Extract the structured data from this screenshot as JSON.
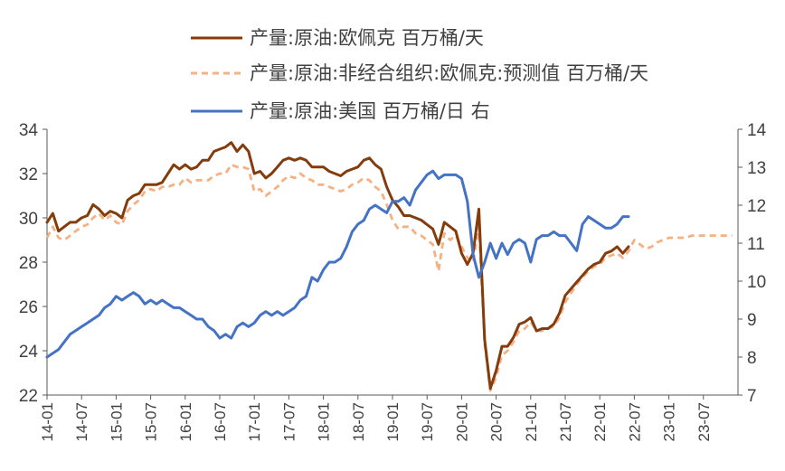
{
  "chart_data": {
    "type": "line",
    "title": "",
    "xlabel": "",
    "ylabel": "",
    "ylim": [
      22,
      34
    ],
    "y2lim": [
      7,
      14
    ],
    "y_ticks": [
      "22",
      "24",
      "26",
      "28",
      "30",
      "32",
      "34"
    ],
    "y2_ticks": [
      "7",
      "8",
      "9",
      "10",
      "11",
      "12",
      "13",
      "14"
    ],
    "x_ticks": [
      "14-01",
      "14-07",
      "15-01",
      "15-07",
      "16-01",
      "16-07",
      "17-01",
      "17-07",
      "18-01",
      "18-07",
      "19-01",
      "19-07",
      "20-01",
      "20-07",
      "21-01",
      "21-07",
      "22-01",
      "22-07",
      "23-01",
      "23-07"
    ],
    "legend_position": "top",
    "grid": false,
    "series": [
      {
        "name": "产量:原油:欧佩克 百万桶/天",
        "axis": "left",
        "color": "#843C0C",
        "style": "solid",
        "x": [
          "2014-01",
          "2014-02",
          "2014-03",
          "2014-04",
          "2014-05",
          "2014-06",
          "2014-07",
          "2014-08",
          "2014-09",
          "2014-10",
          "2014-11",
          "2014-12",
          "2015-01",
          "2015-02",
          "2015-03",
          "2015-04",
          "2015-05",
          "2015-06",
          "2015-07",
          "2015-08",
          "2015-09",
          "2015-10",
          "2015-11",
          "2015-12",
          "2016-01",
          "2016-02",
          "2016-03",
          "2016-04",
          "2016-05",
          "2016-06",
          "2016-07",
          "2016-08",
          "2016-09",
          "2016-10",
          "2016-11",
          "2016-12",
          "2017-01",
          "2017-02",
          "2017-03",
          "2017-04",
          "2017-05",
          "2017-06",
          "2017-07",
          "2017-08",
          "2017-09",
          "2017-10",
          "2017-11",
          "2017-12",
          "2018-01",
          "2018-02",
          "2018-03",
          "2018-04",
          "2018-05",
          "2018-06",
          "2018-07",
          "2018-08",
          "2018-09",
          "2018-10",
          "2018-11",
          "2018-12",
          "2019-01",
          "2019-02",
          "2019-03",
          "2019-04",
          "2019-05",
          "2019-06",
          "2019-07",
          "2019-08",
          "2019-09",
          "2019-10",
          "2019-11",
          "2019-12",
          "2020-01",
          "2020-02",
          "2020-03",
          "2020-04",
          "2020-05",
          "2020-06",
          "2020-07",
          "2020-08",
          "2020-09",
          "2020-10",
          "2020-11",
          "2020-12",
          "2021-01",
          "2021-02",
          "2021-03",
          "2021-04",
          "2021-05",
          "2021-06",
          "2021-07",
          "2021-08",
          "2021-09",
          "2021-10",
          "2021-11",
          "2021-12",
          "2022-01",
          "2022-02",
          "2022-03",
          "2022-04",
          "2022-05",
          "2022-06"
        ],
        "values": [
          29.8,
          30.2,
          29.4,
          29.6,
          29.8,
          29.8,
          30.0,
          30.1,
          30.6,
          30.4,
          30.1,
          30.3,
          30.2,
          30.0,
          30.8,
          31.0,
          31.1,
          31.5,
          31.5,
          31.5,
          31.6,
          32.0,
          32.4,
          32.2,
          32.4,
          32.2,
          32.3,
          32.6,
          32.6,
          33.0,
          33.1,
          33.2,
          33.4,
          33.0,
          33.3,
          33.0,
          32.0,
          32.1,
          31.8,
          32.0,
          32.3,
          32.6,
          32.7,
          32.6,
          32.7,
          32.6,
          32.3,
          32.3,
          32.3,
          32.1,
          32.0,
          31.9,
          32.1,
          32.2,
          32.3,
          32.6,
          32.7,
          32.4,
          32.2,
          31.4,
          30.8,
          30.5,
          30.1,
          30.1,
          30.0,
          29.9,
          29.7,
          29.5,
          28.8,
          29.8,
          29.6,
          29.4,
          28.4,
          27.9,
          28.4,
          30.4,
          24.5,
          22.3,
          23.1,
          24.2,
          24.2,
          24.6,
          25.2,
          25.3,
          25.5,
          24.9,
          25.0,
          25.0,
          25.2,
          25.7,
          26.5,
          26.8,
          27.1,
          27.4,
          27.7,
          27.9,
          28.0,
          28.4,
          28.5,
          28.7,
          28.4,
          28.7
        ]
      },
      {
        "name": "产量:原油:非经合组织:欧佩克:预测值 百万桶/天",
        "axis": "left",
        "color": "#F4B183",
        "style": "dashed",
        "x": [
          "2014-01",
          "2014-02",
          "2014-03",
          "2014-04",
          "2014-05",
          "2014-06",
          "2014-07",
          "2014-08",
          "2014-09",
          "2014-10",
          "2014-11",
          "2014-12",
          "2015-01",
          "2015-02",
          "2015-03",
          "2015-04",
          "2015-05",
          "2015-06",
          "2015-07",
          "2015-08",
          "2015-09",
          "2015-10",
          "2015-11",
          "2015-12",
          "2016-01",
          "2016-02",
          "2016-03",
          "2016-04",
          "2016-05",
          "2016-06",
          "2016-07",
          "2016-08",
          "2016-09",
          "2016-10",
          "2016-11",
          "2016-12",
          "2017-01",
          "2017-02",
          "2017-03",
          "2017-04",
          "2017-05",
          "2017-06",
          "2017-07",
          "2017-08",
          "2017-09",
          "2017-10",
          "2017-11",
          "2017-12",
          "2018-01",
          "2018-02",
          "2018-03",
          "2018-04",
          "2018-05",
          "2018-06",
          "2018-07",
          "2018-08",
          "2018-09",
          "2018-10",
          "2018-11",
          "2018-12",
          "2019-01",
          "2019-02",
          "2019-03",
          "2019-04",
          "2019-05",
          "2019-06",
          "2019-07",
          "2019-08",
          "2019-09",
          "2019-10",
          "2019-11",
          "2019-12",
          "2020-01",
          "2020-02",
          "2020-03",
          "2020-04",
          "2020-05",
          "2020-06",
          "2020-07",
          "2020-08",
          "2020-09",
          "2020-10",
          "2020-11",
          "2020-12",
          "2021-01",
          "2021-02",
          "2021-03",
          "2021-04",
          "2021-05",
          "2021-06",
          "2021-07",
          "2021-08",
          "2021-09",
          "2021-10",
          "2021-11",
          "2021-12",
          "2022-01",
          "2022-02",
          "2022-03",
          "2022-04",
          "2022-05",
          "2022-06",
          "2022-07",
          "2022-08",
          "2022-09",
          "2022-10",
          "2022-11",
          "2022-12",
          "2023-01",
          "2023-02",
          "2023-03",
          "2023-04",
          "2023-05",
          "2023-06",
          "2023-07",
          "2023-08",
          "2023-09",
          "2023-10",
          "2023-11",
          "2023-12"
        ],
        "values": [
          29.1,
          29.6,
          29.1,
          29.0,
          29.2,
          29.4,
          29.6,
          29.7,
          30.0,
          30.2,
          29.9,
          30.1,
          29.8,
          29.7,
          30.3,
          30.6,
          30.8,
          31.2,
          31.3,
          31.2,
          31.4,
          31.4,
          31.5,
          31.5,
          31.8,
          31.6,
          31.7,
          31.7,
          31.7,
          31.9,
          32.0,
          32.0,
          32.4,
          32.3,
          32.3,
          32.2,
          31.2,
          31.3,
          31.0,
          31.2,
          31.4,
          31.7,
          31.9,
          31.8,
          32.0,
          31.8,
          31.7,
          31.5,
          31.5,
          31.4,
          31.3,
          31.2,
          31.3,
          31.5,
          31.6,
          31.8,
          31.7,
          31.4,
          31.2,
          30.6,
          29.9,
          29.5,
          29.6,
          29.6,
          29.3,
          29.2,
          29.0,
          28.8,
          27.6,
          29.3,
          29.0,
          29.2,
          28.7,
          28.2,
          28.0,
          29.6,
          24.3,
          22.2,
          22.8,
          23.8,
          24.0,
          24.4,
          24.9,
          25.0,
          25.3,
          24.9,
          24.9,
          25.0,
          25.1,
          25.5,
          26.2,
          26.6,
          27.0,
          27.3,
          27.6,
          27.8,
          27.9,
          28.2,
          28.3,
          28.4,
          28.2,
          28.5,
          29.0,
          28.8,
          28.6,
          28.7,
          28.9,
          29.0,
          29.1,
          29.1,
          29.1,
          29.1,
          29.2,
          29.2,
          29.2,
          29.2,
          29.2,
          29.2,
          29.2,
          29.2
        ]
      },
      {
        "name": "产量:原油:美国 百万桶/日 右",
        "axis": "right",
        "color": "#4472C4",
        "style": "solid",
        "x": [
          "2014-01",
          "2014-02",
          "2014-03",
          "2014-04",
          "2014-05",
          "2014-06",
          "2014-07",
          "2014-08",
          "2014-09",
          "2014-10",
          "2014-11",
          "2014-12",
          "2015-01",
          "2015-02",
          "2015-03",
          "2015-04",
          "2015-05",
          "2015-06",
          "2015-07",
          "2015-08",
          "2015-09",
          "2015-10",
          "2015-11",
          "2015-12",
          "2016-01",
          "2016-02",
          "2016-03",
          "2016-04",
          "2016-05",
          "2016-06",
          "2016-07",
          "2016-08",
          "2016-09",
          "2016-10",
          "2016-11",
          "2016-12",
          "2017-01",
          "2017-02",
          "2017-03",
          "2017-04",
          "2017-05",
          "2017-06",
          "2017-07",
          "2017-08",
          "2017-09",
          "2017-10",
          "2017-11",
          "2017-12",
          "2018-01",
          "2018-02",
          "2018-03",
          "2018-04",
          "2018-05",
          "2018-06",
          "2018-07",
          "2018-08",
          "2018-09",
          "2018-10",
          "2018-11",
          "2018-12",
          "2019-01",
          "2019-02",
          "2019-03",
          "2019-04",
          "2019-05",
          "2019-06",
          "2019-07",
          "2019-08",
          "2019-09",
          "2019-10",
          "2019-11",
          "2019-12",
          "2020-01",
          "2020-02",
          "2020-03",
          "2020-04",
          "2020-05",
          "2020-06",
          "2020-07",
          "2020-08",
          "2020-09",
          "2020-10",
          "2020-11",
          "2020-12",
          "2021-01",
          "2021-02",
          "2021-03",
          "2021-04",
          "2021-05",
          "2021-06",
          "2021-07",
          "2021-08",
          "2021-09",
          "2021-10",
          "2021-11",
          "2021-12",
          "2022-01",
          "2022-02",
          "2022-03",
          "2022-04",
          "2022-05",
          "2022-06"
        ],
        "values": [
          8.0,
          8.1,
          8.2,
          8.4,
          8.6,
          8.7,
          8.8,
          8.9,
          9.0,
          9.1,
          9.3,
          9.4,
          9.6,
          9.5,
          9.6,
          9.7,
          9.6,
          9.4,
          9.5,
          9.4,
          9.5,
          9.4,
          9.3,
          9.3,
          9.2,
          9.1,
          9.0,
          9.0,
          8.8,
          8.7,
          8.5,
          8.6,
          8.5,
          8.8,
          8.9,
          8.8,
          8.9,
          9.1,
          9.2,
          9.1,
          9.2,
          9.1,
          9.2,
          9.3,
          9.5,
          9.6,
          10.1,
          10.0,
          10.3,
          10.5,
          10.5,
          10.6,
          10.9,
          11.3,
          11.5,
          11.6,
          11.9,
          12.0,
          11.9,
          11.8,
          12.1,
          12.1,
          12.2,
          12.0,
          12.4,
          12.6,
          12.8,
          12.9,
          12.7,
          12.8,
          12.8,
          12.8,
          12.7,
          12.1,
          10.7,
          10.1,
          10.5,
          11.0,
          10.6,
          11.0,
          10.7,
          11.0,
          11.1,
          11.0,
          10.5,
          11.1,
          11.2,
          11.2,
          11.3,
          11.2,
          11.2,
          11.0,
          10.8,
          11.5,
          11.7,
          11.6,
          11.5,
          11.4,
          11.4,
          11.5,
          11.7,
          11.7
        ]
      }
    ]
  }
}
